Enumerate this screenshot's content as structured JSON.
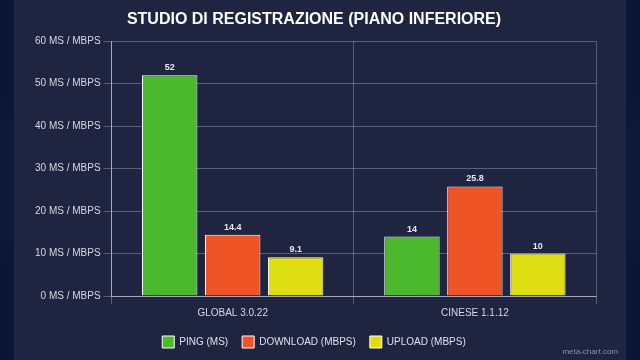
{
  "chart_data": {
    "type": "bar",
    "title": "STUDIO DI REGISTRAZIONE (PIANO INFERIORE)",
    "categories": [
      "GLOBAL 3.0.22",
      "CINESE 1.1.12"
    ],
    "series": [
      {
        "name": "PING (MS)",
        "color": "#4cb82e",
        "values": [
          52,
          14
        ]
      },
      {
        "name": "DOWNLOAD (MBPS)",
        "color": "#ee5426",
        "values": [
          14.4,
          25.8
        ]
      },
      {
        "name": "UPLOAD (MBPS)",
        "color": "#dede12",
        "values": [
          9.1,
          10
        ]
      }
    ],
    "ylim": [
      0,
      60
    ],
    "yticks": [
      {
        "value": 0,
        "label": "0 MS / MBPS"
      },
      {
        "value": 10,
        "label": "10 MS / MBPS"
      },
      {
        "value": 20,
        "label": "20 MS / MBPS"
      },
      {
        "value": 30,
        "label": "30 MS / MBPS"
      },
      {
        "value": 40,
        "label": "40 MS / MBPS"
      },
      {
        "value": 50,
        "label": "50 MS / MBPS"
      },
      {
        "value": 60,
        "label": "60 MS / MBPS"
      }
    ],
    "grid": true,
    "legend": "bottom",
    "data_labels": true,
    "annotations": [
      "meta-chart.com"
    ]
  }
}
